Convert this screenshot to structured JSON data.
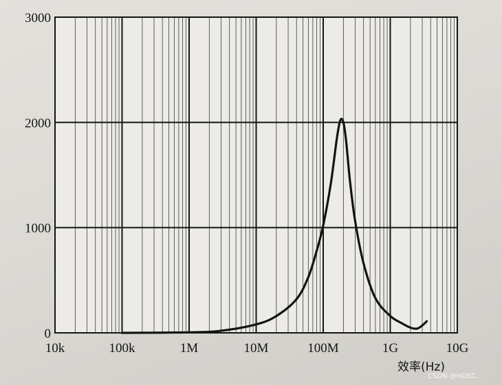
{
  "chart_data": {
    "type": "line",
    "title": "",
    "xlabel": "效率(Hz)",
    "ylabel": "",
    "x_scale": "log",
    "xlim": [
      10000,
      10000000000
    ],
    "ylim": [
      0,
      3000
    ],
    "x_tick_labels": [
      "10k",
      "100k",
      "1M",
      "10M",
      "100M",
      "1G",
      "10G"
    ],
    "x_tick_values": [
      10000,
      100000,
      1000000,
      10000000,
      100000000,
      1000000000,
      10000000000
    ],
    "y_tick_labels": [
      "0",
      "1000",
      "2000",
      "3000"
    ],
    "y_tick_values": [
      0,
      1000,
      2000,
      3000
    ],
    "grid": true,
    "legend": "none",
    "colors": {
      "grid_major": "#141414",
      "grid_minor": "#3a3a3a",
      "curve": "#141414",
      "plot_bg": "#ecebe7"
    },
    "series": [
      {
        "x": [
          100000,
          1000000,
          3000000,
          10000000,
          20000000,
          40000000,
          60000000,
          80000000,
          100000000,
          130000000,
          160000000,
          180000000,
          200000000,
          220000000,
          250000000,
          300000000,
          400000000,
          600000000,
          1000000000,
          1500000000,
          2000000000,
          2500000000,
          3000000000,
          3500000000
        ],
        "y": [
          0,
          5,
          20,
          80,
          160,
          320,
          530,
          780,
          1020,
          1420,
          1850,
          2020,
          2000,
          1820,
          1450,
          1060,
          660,
          330,
          160,
          90,
          50,
          40,
          70,
          110
        ]
      }
    ]
  },
  "watermark": "CSDN @HDSC."
}
